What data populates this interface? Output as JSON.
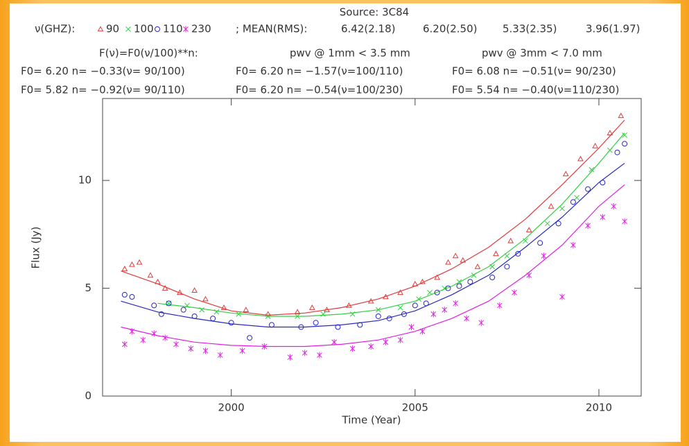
{
  "chart_data": {
    "type": "scatter",
    "title": "Source: 3C84",
    "legend_label": "ν(GHZ):",
    "mean_label": "; MEAN(RMS):",
    "fit_formula": "F(ν)=F0(ν/100)**n:",
    "pwv_notes": [
      "pwv @ 1mm <  3.5 mm",
      "pwv @ 3mm <  7.0 mm"
    ],
    "fit_results": [
      [
        "F0= 6.20 n= −0.33(ν= 90/100)",
        "F0= 6.20 n= −1.57(ν=100/110)",
        "F0= 6.08 n= −0.51(ν= 90/230)"
      ],
      [
        "F0= 5.82 n= −0.92(ν= 90/110)",
        "F0= 6.20 n= −0.54(ν=100/230)",
        "F0= 5.54 n= −0.40(ν=110/230)"
      ]
    ],
    "x_label": "Time (Year)",
    "y_label": "Flux (Jy)",
    "xlim": [
      1996.5,
      2011.15
    ],
    "ylim": [
      0,
      13.8
    ],
    "xticks": [
      2000,
      2005,
      2010
    ],
    "yticks": [
      0,
      5,
      10
    ],
    "fit_x": [
      1997,
      1998,
      1999,
      2000,
      2001,
      2002,
      2003,
      2004,
      2005,
      2006,
      2007,
      2008,
      2009,
      2010,
      2010.7
    ],
    "series": [
      {
        "name": "90",
        "color": "#e03a3a",
        "marker": "triangle",
        "mean_rms": "6.42(2.18)",
        "x": [
          1997.1,
          1997.3,
          1997.5,
          1997.8,
          1998.0,
          1998.2,
          1998.6,
          1999.0,
          1999.3,
          1999.8,
          2000.4,
          2001.0,
          2001.8,
          2002.2,
          2002.6,
          2003.2,
          2003.8,
          2004.2,
          2004.6,
          2005.0,
          2005.2,
          2005.6,
          2005.9,
          2006.1,
          2006.3,
          2006.7,
          2007.2,
          2007.6,
          2008.1,
          2008.7,
          2009.1,
          2009.5,
          2009.9,
          2010.3,
          2010.6
        ],
        "values": [
          5.9,
          6.1,
          6.2,
          5.6,
          5.3,
          5.0,
          4.8,
          4.9,
          4.5,
          4.1,
          4.0,
          3.8,
          3.9,
          4.1,
          4.0,
          4.2,
          4.4,
          4.6,
          4.8,
          5.2,
          5.3,
          5.5,
          6.2,
          6.5,
          6.3,
          6.0,
          6.6,
          7.2,
          7.7,
          8.8,
          10.3,
          11.0,
          11.6,
          12.2,
          13.0
        ],
        "fit_values": [
          5.8,
          5.2,
          4.5,
          3.95,
          3.75,
          3.85,
          4.1,
          4.5,
          5.1,
          5.9,
          6.9,
          8.2,
          9.8,
          11.5,
          12.8
        ]
      },
      {
        "name": "100",
        "color": "#30d040",
        "marker": "cross",
        "mean_rms": "6.20(2.50)",
        "x": [
          1998.3,
          1998.8,
          1999.2,
          1999.6,
          2000.2,
          2001.0,
          2001.8,
          2002.5,
          2003.3,
          2004.0,
          2004.6,
          2005.1,
          2005.4,
          2005.8,
          2006.2,
          2006.6,
          2007.1,
          2007.5,
          2008.0,
          2008.6,
          2009.0,
          2009.4,
          2009.8,
          2010.3,
          2010.7
        ],
        "values": [
          4.3,
          4.2,
          4.0,
          3.9,
          3.8,
          3.7,
          3.7,
          3.8,
          3.8,
          4.0,
          4.1,
          4.5,
          4.8,
          5.0,
          5.3,
          5.6,
          6.0,
          6.5,
          7.2,
          8.0,
          8.7,
          9.2,
          10.5,
          11.4,
          12.1
        ],
        "fit_values": [
          null,
          4.3,
          4.1,
          3.85,
          3.7,
          3.7,
          3.8,
          4.0,
          4.4,
          5.1,
          6.0,
          7.3,
          8.9,
          10.8,
          12.2
        ]
      },
      {
        "name": "110",
        "color": "#2828c0",
        "marker": "circle",
        "mean_rms": "5.33(2.35)",
        "x": [
          1997.1,
          1997.3,
          1997.9,
          1998.1,
          1998.3,
          1998.7,
          1999.0,
          1999.5,
          2000.0,
          2000.5,
          2001.1,
          2001.9,
          2002.3,
          2002.9,
          2003.5,
          2004.0,
          2004.3,
          2004.7,
          2005.0,
          2005.3,
          2005.6,
          2005.9,
          2006.2,
          2006.5,
          2007.1,
          2007.5,
          2007.8,
          2008.4,
          2008.9,
          2009.3,
          2009.7,
          2010.1,
          2010.5,
          2010.7
        ],
        "values": [
          4.7,
          4.6,
          4.2,
          3.8,
          4.3,
          4.0,
          3.7,
          3.6,
          3.4,
          2.7,
          3.3,
          3.2,
          3.4,
          3.2,
          3.3,
          3.7,
          3.6,
          3.8,
          4.2,
          4.3,
          4.8,
          5.0,
          5.1,
          5.3,
          5.5,
          6.0,
          6.6,
          7.1,
          8.0,
          9.0,
          9.6,
          9.9,
          11.3,
          11.7
        ],
        "fit_values": [
          4.4,
          3.9,
          3.6,
          3.35,
          3.2,
          3.2,
          3.3,
          3.5,
          3.95,
          4.7,
          5.6,
          6.9,
          8.3,
          9.9,
          10.8
        ]
      },
      {
        "name": "230",
        "color": "#e020e0",
        "marker": "asterisk",
        "mean_rms": "3.96(1.97)",
        "x": [
          1997.1,
          1997.3,
          1997.6,
          1997.9,
          1998.2,
          1998.5,
          1998.9,
          1999.3,
          1999.7,
          2000.3,
          2000.9,
          2001.6,
          2002.0,
          2002.4,
          2002.8,
          2003.3,
          2003.8,
          2004.2,
          2004.6,
          2004.9,
          2005.2,
          2005.5,
          2005.8,
          2006.1,
          2006.4,
          2006.8,
          2007.3,
          2007.7,
          2008.1,
          2008.5,
          2009.0,
          2009.3,
          2009.7,
          2010.1,
          2010.4,
          2010.7
        ],
        "values": [
          2.4,
          3.0,
          2.6,
          2.9,
          2.7,
          2.4,
          2.2,
          2.1,
          1.9,
          2.1,
          2.3,
          1.8,
          2.0,
          1.9,
          2.5,
          2.2,
          2.3,
          2.5,
          2.6,
          3.2,
          3.0,
          3.8,
          4.0,
          4.3,
          3.6,
          3.4,
          4.2,
          4.8,
          5.6,
          6.5,
          4.6,
          7.0,
          7.9,
          8.3,
          8.8,
          8.1
        ],
        "fit_values": [
          3.2,
          2.8,
          2.5,
          2.35,
          2.3,
          2.3,
          2.4,
          2.6,
          3.0,
          3.6,
          4.4,
          5.6,
          7.0,
          8.8,
          9.8
        ]
      }
    ]
  }
}
